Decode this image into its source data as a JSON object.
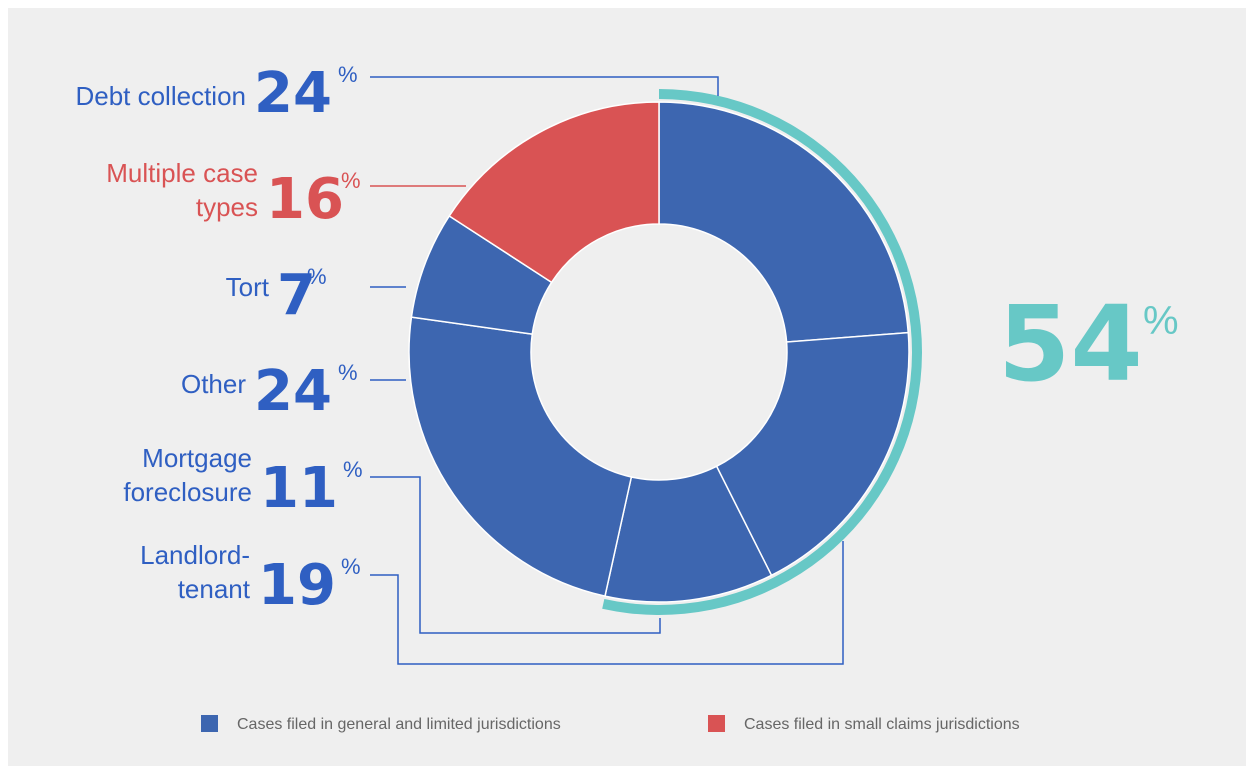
{
  "chart_data": {
    "type": "pie",
    "style": "donut",
    "colors": {
      "general": "#3d66b0",
      "small_claims": "#d95354",
      "highlight": "#67c8c6",
      "label_blue": "#2f5fc2",
      "label_red": "#d95354",
      "background": "#efefef",
      "legend_text": "#666666"
    },
    "slices": [
      {
        "name": "Debt collection",
        "value": 24,
        "group": "general"
      },
      {
        "name": "Landlord-tenant",
        "value": 19,
        "group": "general"
      },
      {
        "name": "Mortgage foreclosure",
        "value": 11,
        "group": "general"
      },
      {
        "name": "Other",
        "value": 24,
        "group": "general"
      },
      {
        "name": "Tort",
        "value": 7,
        "group": "general"
      },
      {
        "name": "Multiple case types",
        "value": 16,
        "group": "small_claims"
      }
    ],
    "labels": [
      {
        "lines": [
          "Debt collection"
        ],
        "value": "24",
        "suffix": "%",
        "group": "general"
      },
      {
        "lines": [
          "Multiple case",
          "types"
        ],
        "value": "16",
        "suffix": "%",
        "group": "small_claims"
      },
      {
        "lines": [
          "Tort"
        ],
        "value": "7",
        "suffix": "%",
        "group": "general"
      },
      {
        "lines": [
          "Other"
        ],
        "value": "24",
        "suffix": "%",
        "group": "general"
      },
      {
        "lines": [
          "Mortgage",
          "foreclosure"
        ],
        "value": "11",
        "suffix": "%",
        "group": "general"
      },
      {
        "lines": [
          "Landlord-",
          "tenant"
        ],
        "value": "19",
        "suffix": "%",
        "group": "general"
      }
    ],
    "highlight": {
      "value": "54",
      "suffix": "%",
      "covers": [
        "Debt collection",
        "Landlord-tenant",
        "Mortgage foreclosure"
      ]
    },
    "legend": [
      {
        "label": "Cases filed in general and limited jurisdictions",
        "group": "general"
      },
      {
        "label": "Cases filed in small claims jurisdictions",
        "group": "small_claims"
      }
    ],
    "legend_position": "bottom"
  }
}
